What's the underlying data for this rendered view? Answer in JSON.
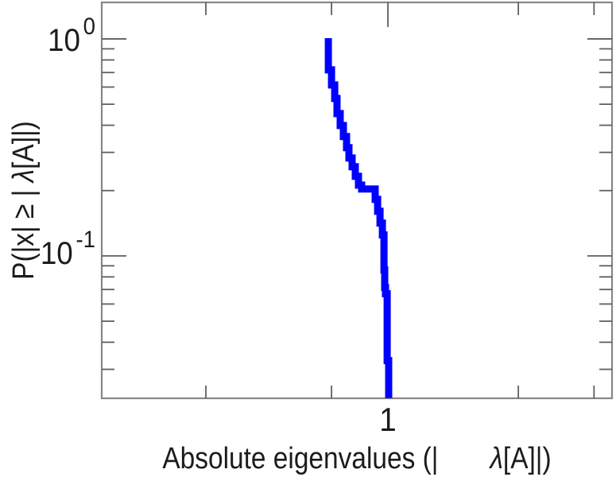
{
  "figure": {
    "background": "#ffffff",
    "frame_color": "#878787",
    "tick_color": "#5f5f5f",
    "text_color": "#1c1c1c"
  },
  "chart_data": {
    "type": "line",
    "style": "step-ccdf",
    "title": "",
    "xlabel": "Absolute eigenvalues (|       λ[A]|)",
    "ylabel": "P(|x| ≥ | λ[A]|)",
    "xlabel_parts": {
      "pre": "Absolute eigenvalues (|",
      "lambda": "       λ",
      "post": "[A]|)"
    },
    "ylabel_parts": {
      "pre": "P(|x| ≥ | ",
      "lambda": "λ",
      "post": "[A]|)"
    },
    "xscale": "log",
    "yscale": "log",
    "xlim": [
      0.2185,
      3.2905
    ],
    "ylim": [
      0.02206,
      1.4737
    ],
    "grid": false,
    "legend": null,
    "xticks": {
      "major": [
        {
          "value": 1,
          "label": "1"
        }
      ],
      "minor": [
        0.38,
        0.741,
        2.0,
        2.99
      ]
    },
    "yticks": {
      "major": [
        {
          "value": 1.0,
          "base": "10",
          "exp": "0"
        },
        {
          "value": 0.1,
          "base": "10",
          "exp": "-1"
        }
      ],
      "minor": [
        0.9,
        0.8,
        0.7,
        0.6,
        0.5,
        0.4,
        0.3,
        0.2,
        0.09,
        0.08,
        0.07,
        0.06,
        0.05,
        0.04,
        0.03
      ]
    },
    "series": [
      {
        "name": "eigenvalue-ccdf",
        "color": "#0000ff",
        "line_width": 9,
        "step": "vertical-then-horizontal",
        "points": [
          [
            0.7286,
            1.008
          ],
          [
            0.7286,
            0.8237
          ],
          [
            0.7409,
            0.7198
          ],
          [
            0.7535,
            0.6134
          ],
          [
            0.7631,
            0.5313
          ],
          [
            0.776,
            0.4525
          ],
          [
            0.7891,
            0.399
          ],
          [
            0.8025,
            0.3546
          ],
          [
            0.8127,
            0.3151
          ],
          [
            0.8266,
            0.2825
          ],
          [
            0.8407,
            0.2577
          ],
          [
            0.8551,
            0.2327
          ],
          [
            0.8697,
            0.2119
          ],
          [
            0.9346,
            0.2032
          ],
          [
            0.9466,
            0.1822
          ],
          [
            0.9587,
            0.1606
          ],
          [
            0.9709,
            0.1416
          ],
          [
            0.9791,
            0.1249
          ],
          [
            0.9832,
            0.0862
          ],
          [
            0.9874,
            0.0715
          ],
          [
            0.9958,
            0.0669
          ],
          [
            0.9958,
            0.0352
          ],
          [
            1.0042,
            0.0329
          ],
          [
            1.0042,
            0.0221
          ]
        ]
      }
    ]
  }
}
